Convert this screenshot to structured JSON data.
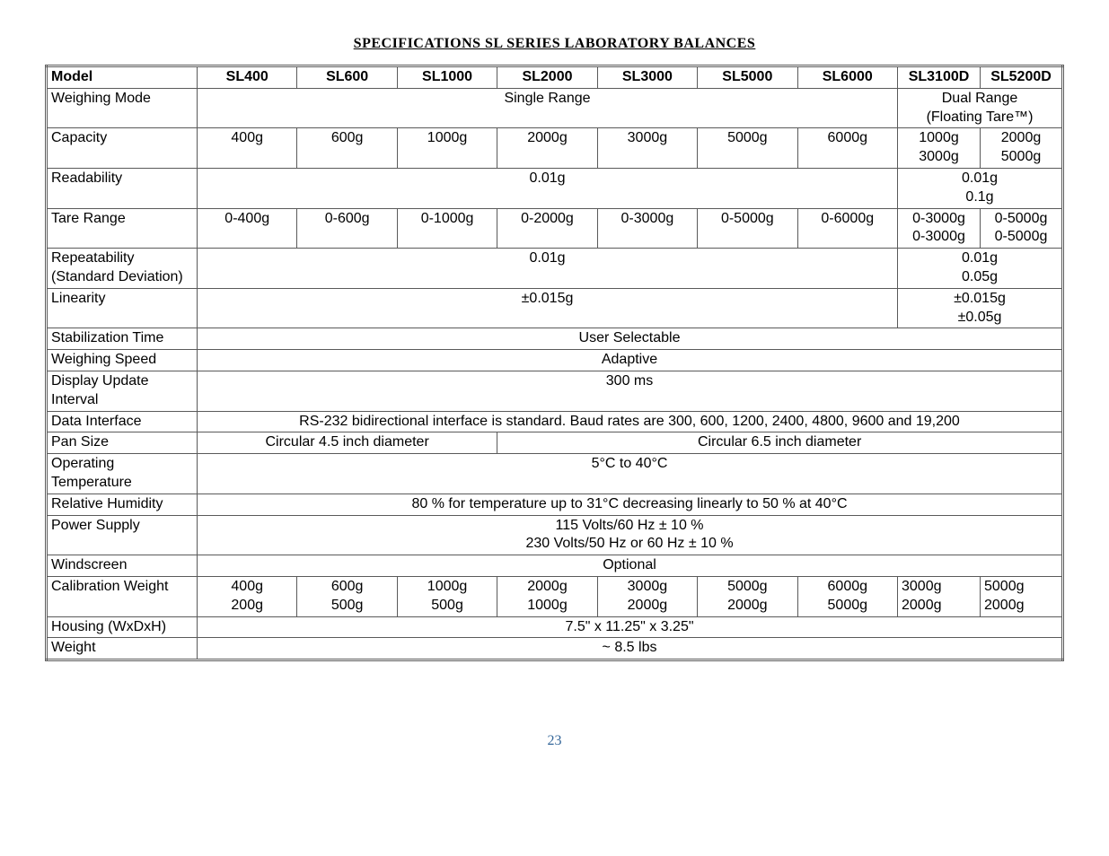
{
  "title": "SPECIFICATIONS SL SERIES LABORATORY BALANCES",
  "page_number": "23",
  "models": [
    "SL400",
    "SL600",
    "SL1000",
    "SL2000",
    "SL3000",
    "SL5000",
    "SL6000",
    "SL3100D",
    "SL5200D"
  ],
  "row_labels": {
    "model": "Model",
    "weighing_mode": "Weighing Mode",
    "capacity": "Capacity",
    "readability": "Readability",
    "tare_range": "Tare Range",
    "repeatability": "Repeatability (Standard Deviation)",
    "linearity": "Linearity",
    "stabilization_time": "Stabilization Time",
    "weighing_speed": "Weighing Speed",
    "display_update": "Display Update Interval",
    "data_interface": "Data Interface",
    "pan_size": "Pan Size",
    "operating_temp": "Operating Temperature",
    "relative_humidity": "Relative Humidity",
    "power_supply": "Power Supply",
    "windscreen": "Windscreen",
    "calibration_weight": "Calibration Weight",
    "housing": "Housing (WxDxH)",
    "weight": "Weight"
  },
  "weighing_mode": {
    "single": "Single Range",
    "dual_l1": "Dual Range",
    "dual_l2": "(Floating Tare™)"
  },
  "capacity": {
    "single": [
      "400g",
      "600g",
      "1000g",
      "2000g",
      "3000g",
      "5000g",
      "6000g"
    ],
    "dual_a": [
      "1000g",
      "3000g"
    ],
    "dual_b": [
      "2000g",
      "5000g"
    ]
  },
  "readability": {
    "single": "0.01g",
    "dual_l1": "0.01g",
    "dual_l2": "0.1g"
  },
  "tare_range": {
    "single": [
      "0-400g",
      "0-600g",
      "0-1000g",
      "0-2000g",
      "0-3000g",
      "0-5000g",
      "0-6000g"
    ],
    "dual_a": [
      "0-3000g",
      "0-3000g"
    ],
    "dual_b": [
      "0-5000g",
      "0-5000g"
    ]
  },
  "repeatability": {
    "single": "0.01g",
    "dual_l1": "0.01g",
    "dual_l2": "0.05g"
  },
  "linearity": {
    "single": "±0.015g",
    "dual_l1": "±0.015g",
    "dual_l2": "±0.05g"
  },
  "stabilization_time": "User Selectable",
  "weighing_speed": "Adaptive",
  "display_update": "300 ms",
  "data_interface": "RS-232 bidirectional interface is standard. Baud rates are 300, 600, 1200, 2400, 4800, 9600 and 19,200",
  "pan_size": {
    "small": "Circular 4.5 inch diameter",
    "large": "Circular 6.5 inch diameter"
  },
  "operating_temp": "5°C to 40°C",
  "relative_humidity": "80 % for temperature up to 31°C decreasing linearly to 50 % at 40°C",
  "power_supply_l1": "115 Volts/60 Hz ± 10 %",
  "power_supply_l2": "230 Volts/50 Hz or 60 Hz ± 10 %",
  "windscreen": "Optional",
  "calibration_weight": {
    "r1": [
      "400g",
      "600g",
      "1000g",
      "2000g",
      "3000g",
      "5000g",
      "6000g",
      "3000g",
      "5000g"
    ],
    "r2": [
      "200g",
      "500g",
      "500g",
      "1000g",
      "2000g",
      "2000g",
      "5000g",
      "2000g",
      "2000g"
    ]
  },
  "housing": "7.5\" x 11.25\" x 3.25\"",
  "weight": "~ 8.5 lbs",
  "style": {
    "body_bg": "#ffffff",
    "text_color": "#000000",
    "title_font": "Times New Roman",
    "body_font": "Arial",
    "title_fontsize_pt": 12,
    "cell_fontsize_pt": 12,
    "border_color": "#5a5a5a",
    "page_num_color": "#336699",
    "table_border_style": "double"
  }
}
